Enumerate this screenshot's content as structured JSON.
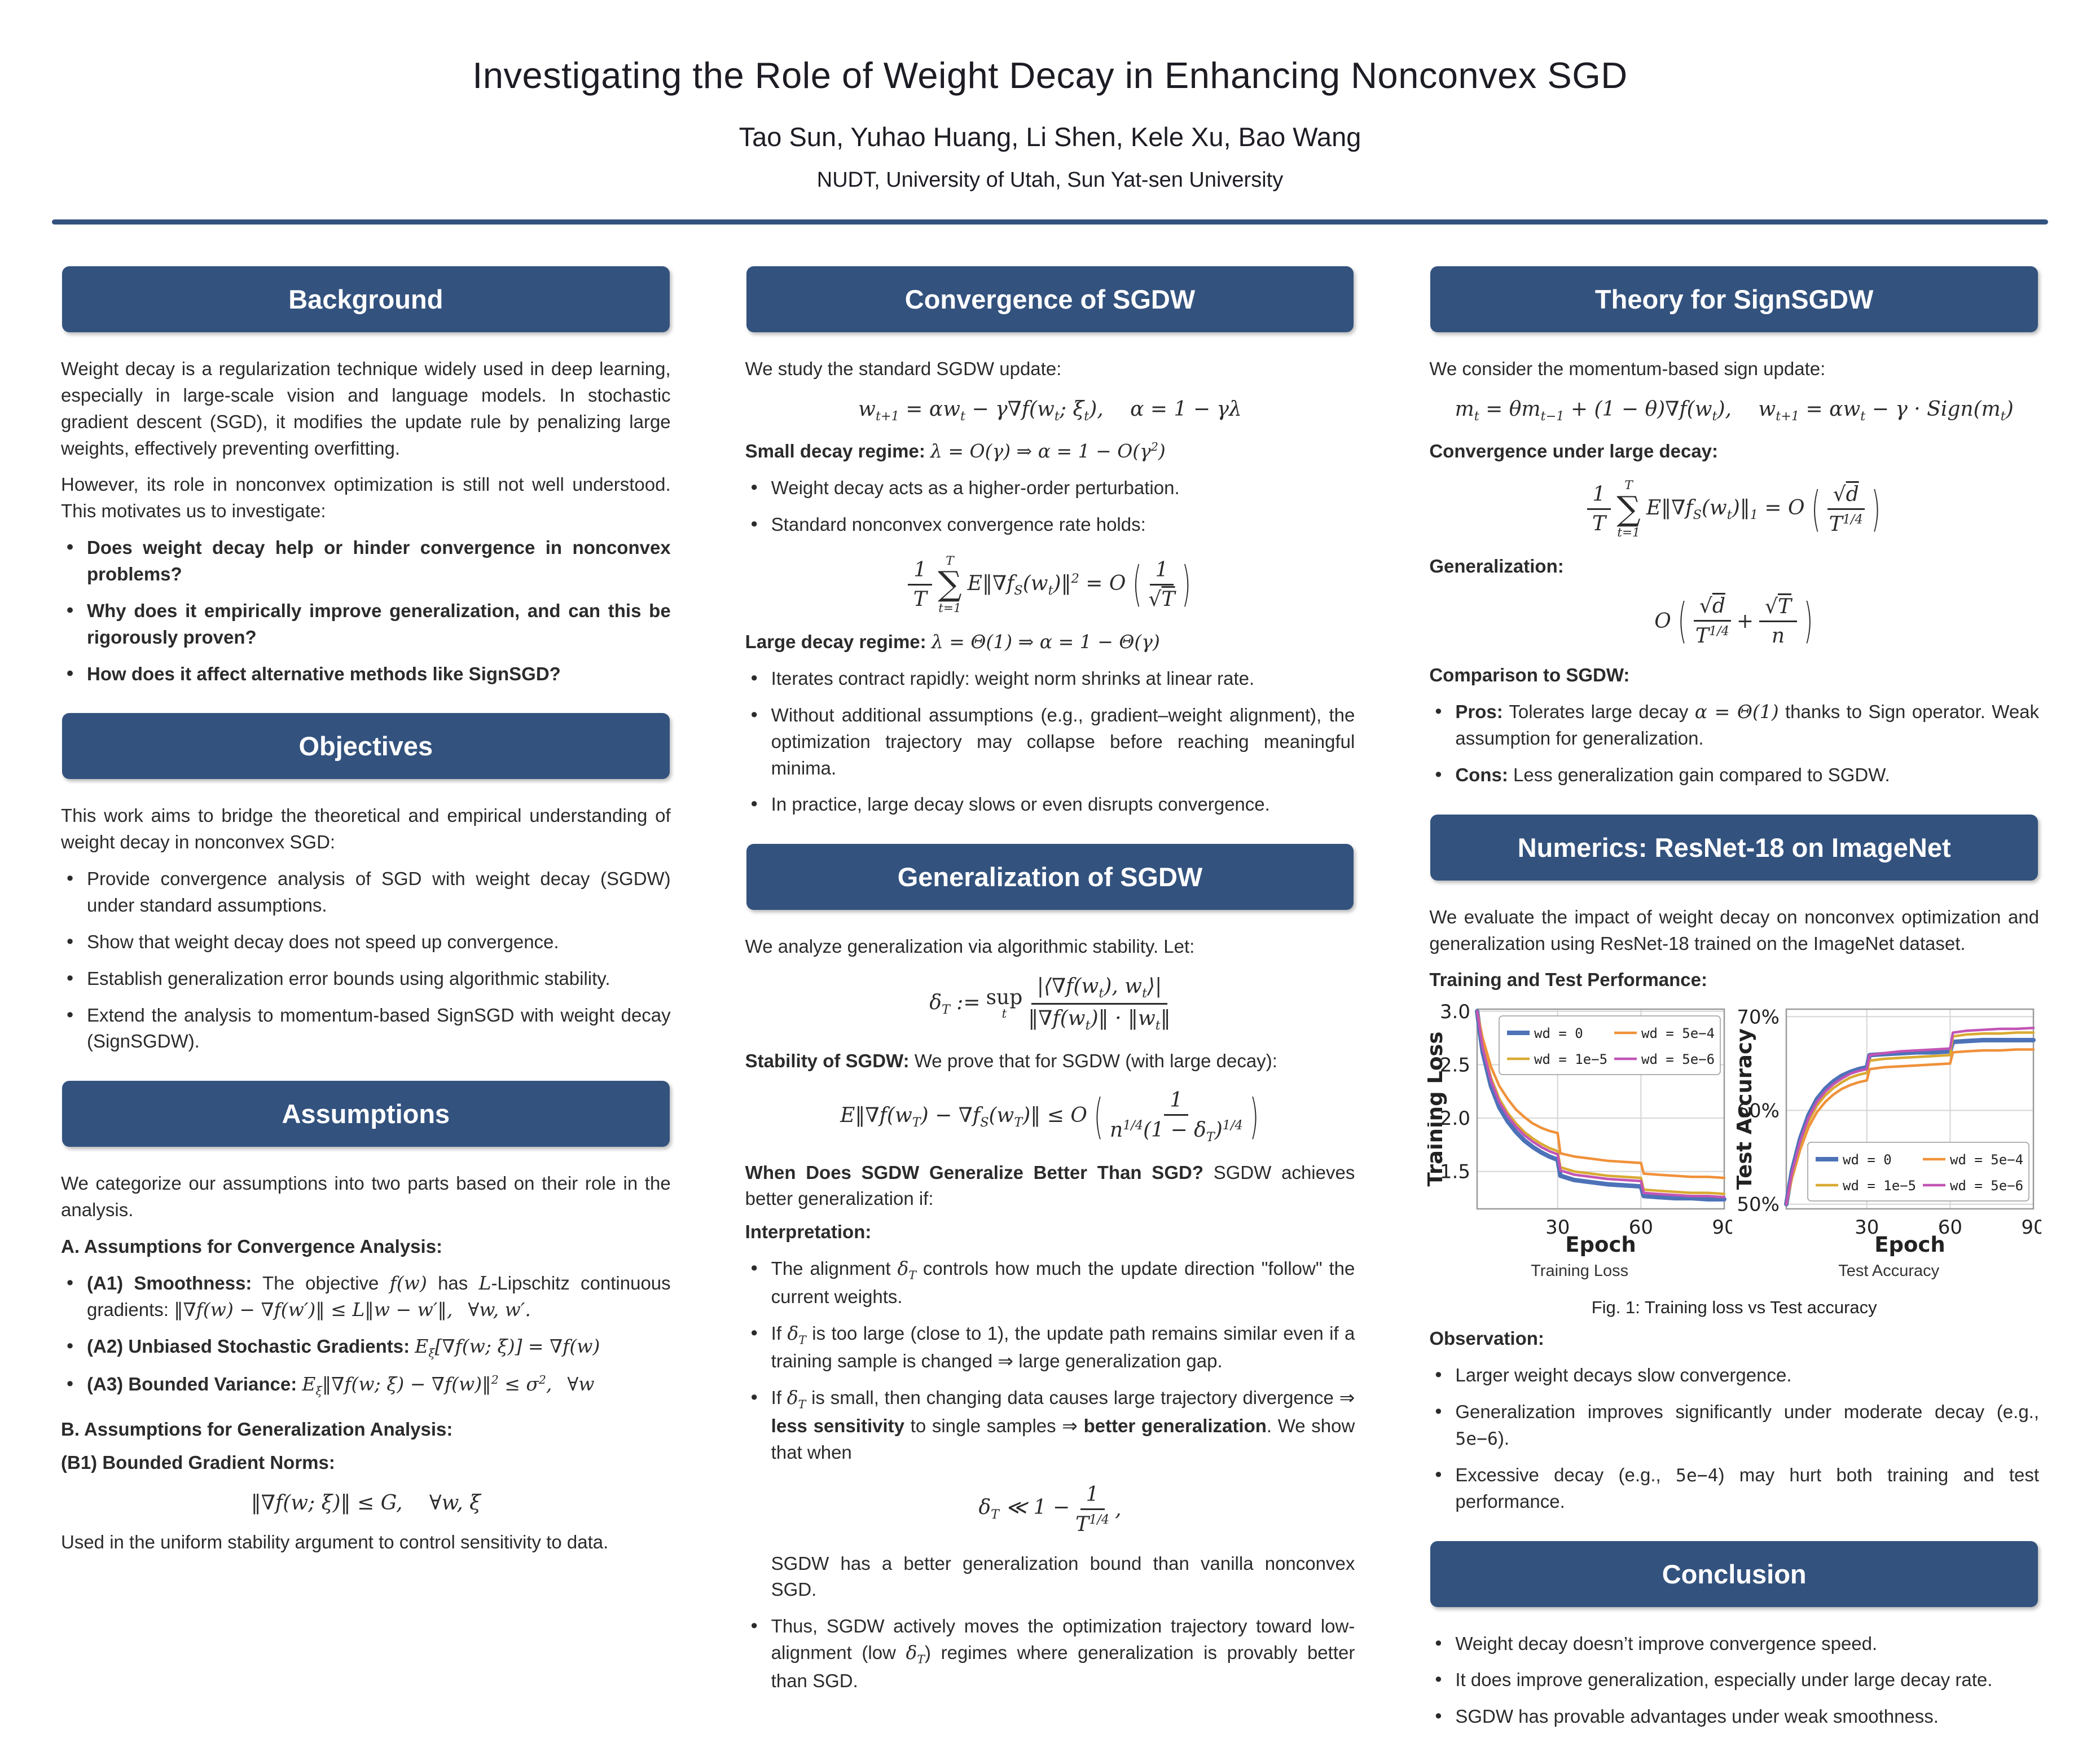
{
  "colors": {
    "header_bg": "#33527e",
    "rule": "#33527e",
    "text": "#2b2b2b"
  },
  "header": {
    "title": "Investigating the Role of Weight Decay in Enhancing Nonconvex SGD",
    "authors": "Tao Sun, Yuhao Huang, Li Shen, Kele Xu, Bao Wang",
    "affiliation": "NUDT, University of Utah, Sun Yat-sen University"
  },
  "background": {
    "header": "Background",
    "para1": "Weight decay is a regularization technique widely used in deep learning, especially in large-scale vision and language models. In stochastic gradient descent (SGD), it modifies the update rule by penalizing large weights, effectively preventing overfitting.",
    "para2": "However, its role in nonconvex optimization is still not well understood. This motivates us to investigate:",
    "bullets": [
      "Does weight decay help or hinder convergence in nonconvex problems?",
      "Why does it empirically improve generalization, and can this be rigorously proven?",
      "How does it affect alternative methods like SignSGD?"
    ]
  },
  "objectives": {
    "header": "Objectives",
    "intro": "This work aims to bridge the theoretical and empirical understanding of weight decay in nonconvex SGD:",
    "bullets": [
      "Provide convergence analysis of SGD with weight decay (SGDW) under standard assumptions.",
      "Show that weight decay does not speed up convergence.",
      "Establish generalization error bounds using algorithmic stability.",
      "Extend the analysis to momentum-based SignSGD with weight decay (SignSGDW)."
    ]
  },
  "assumptions": {
    "header": "Assumptions",
    "intro": "We categorize our assumptions into two parts based on their role in the analysis.",
    "part_a": "**A. Assumptions for Convergence Analysis:**",
    "bullets": [
      "**(A1) Smoothness:** The objective $f(w)$ has $L$-Lipschitz continuous gradients: $‖∇f(w) − ∇f(w′)‖ ≤ L‖w − w′‖,  ∀w, w′.$",
      "**(A2) Unbiased Stochastic Gradients:** $E_{ξ}[∇f(w; ξ)] = ∇f(w)$",
      "**(A3) Bounded Variance:** $E_{ξ}‖∇f(w; ξ) − ∇f(w)‖^{2} ≤ σ^{2},  ∀w$"
    ],
    "part_b": "**B. Assumptions for Generalization Analysis:**",
    "b1_title": "**(B1) Bounded Gradient Norms:**",
    "b1_eq": "$‖∇f(w; ξ)‖ ≤ G,  ∀w, ξ$",
    "footer": "Used in the uniform stability argument to control sensitivity to data."
  },
  "convergence": {
    "header": "Convergence of SGDW",
    "intro": "We study the standard SGDW update:",
    "update_eq": "$w_{t+1} = αw_{t} − γ∇f(w_{t}; ξ_{t}),  α = 1 − γλ$",
    "small_line": "**Small decay regime:** $λ = O(γ) ⇒ α = 1 − O(γ^{2})$",
    "small_bullets": [
      "Weight decay acts as a higher-order perturbation.",
      "Standard nonconvex convergence rate holds:"
    ],
    "rate_eq": {
      "frac1_num": "1",
      "frac1_den": "T",
      "sum_top": "T",
      "sum_bot": "t=1",
      "mid": "E‖∇f_{S}(w_{t})‖^{2} = O",
      "frac2_num": "1",
      "frac2_den": "√{T}"
    },
    "large_line": "**Large decay regime:** $λ = Θ(1) ⇒ α = 1 − Θ(γ)$",
    "large_bullets": [
      "Iterates contract rapidly: weight norm shrinks at linear rate.",
      "Without additional assumptions (e.g., gradient–weight alignment), the optimization trajectory may collapse before reaching meaningful minima.",
      "In practice, large decay slows or even disrupts convergence."
    ]
  },
  "generalization": {
    "header": "Generalization of SGDW",
    "intro": "We analyze generalization via algorithmic stability. Let:",
    "delta_eq": {
      "lhs": "δ_{T} :=",
      "sup": "sup",
      "sup_sub": "t",
      "num": "|⟨∇f(w_{t}), w_{t}⟩|",
      "den": "‖∇f(w_{t})‖ · ‖w_{t}‖"
    },
    "stability_line": "**Stability of SGDW:** We prove that for SGDW (with large decay):",
    "stab_eq": {
      "lhs": "E‖∇f(w_{T}) − ∇f_{S}(w_{T})‖ ≤ O",
      "num": "1",
      "den": "n^{1/4}(1 − δ_{T})^{1/4}"
    },
    "when_line": "**When Does SGDW Generalize Better Than SGD?** SGDW achieves better generalization if:",
    "interp_label": "**Interpretation:**",
    "bullets": [
      "The alignment $δ_{T}$ controls how much the update direction \"follow\" the current weights.",
      "If $δ_{T}$ is too large (close to 1), the update path remains similar even if a training sample is changed ⇒ large generalization gap.",
      "If $δ_{T}$ is small, then changing data causes large trajectory divergence ⇒ **less sensitivity** to single samples ⇒ **better generalization**. We show that when"
    ],
    "cond_eq": {
      "lhs": "δ_{T} ≪ 1 −",
      "num": "1",
      "den": "T^{1/4}",
      "tail": ","
    },
    "cond_after": "SGDW has a better generalization bound than vanilla nonconvex SGD.",
    "final_bullet": "Thus, SGDW actively moves the optimization trajectory toward low-alignment (low $δ_{T}$) regimes where generalization is provably better than SGD."
  },
  "signsgdw": {
    "header": "Theory for SignSGDW",
    "intro": "We consider the momentum-based sign update:",
    "update_eq": "$m_{t} = θm_{t−1} + (1 − θ)∇f(w_{t}),  w_{t+1} = αw_{t} − γ · Sign(m_{t})$",
    "conv_label": "**Convergence under large decay:**",
    "conv_eq": {
      "frac1_num": "1",
      "frac1_den": "T",
      "sum_top": "T",
      "sum_bot": "t=1",
      "mid": "E‖∇f_{S}(w_{t})‖_{1} = O",
      "frac2_num": "√{d}",
      "frac2_den": "T^{1/4}"
    },
    "gen_label": "**Generalization:**",
    "gen_eq": {
      "lhs": "O",
      "num1": "√{d}",
      "den1": "T^{1/4}",
      "plus": "+",
      "num2": "√{T}",
      "den2": "n"
    },
    "comp_label": "**Comparison to SGDW:**",
    "bullets": [
      "**Pros:** Tolerates large decay $α = Θ(1)$ thanks to Sign operator. Weak assumption for generalization.",
      "**Cons:** Less generalization gain compared to SGDW."
    ]
  },
  "numerics": {
    "header": "Numerics: ResNet-18 on ImageNet",
    "intro": "We evaluate the impact of weight decay on nonconvex optimization and generalization using ResNet-18 trained on the ImageNet dataset.",
    "perf_label": "**Training and Test Performance:**",
    "fig_caption": "Fig. 1: Training loss vs Test accuracy",
    "obs_label": "**Observation:**",
    "obs_bullets": [
      "Larger weight decays slow convergence.",
      "Generalization improves significantly under moderate decay (e.g., `5e−6`).",
      "Excessive decay (e.g., `5e−4`) may hurt both training and test performance."
    ]
  },
  "conclusion": {
    "header": "Conclusion",
    "bullets": [
      "Weight decay doesn’t improve convergence speed.",
      "It does improve generalization, especially under large decay rate.",
      "SGDW has provable advantages under weak smoothness."
    ]
  },
  "chart_data": [
    {
      "type": "line",
      "caption": "Training Loss",
      "xlabel": "Epoch",
      "ylabel": "Training Loss",
      "xlim": [
        1,
        90
      ],
      "ylim": [
        1.15,
        3.02
      ],
      "xticks": [
        30,
        60,
        90
      ],
      "yticks": [
        1.5,
        2.0,
        2.5,
        3.0
      ],
      "ytick_labels": [
        "1.5",
        "2.0",
        "2.5",
        "3.0"
      ],
      "legend_pos": "top",
      "grid": true,
      "x": [
        1,
        3,
        6,
        9,
        12,
        15,
        18,
        21,
        24,
        27,
        30,
        31,
        36,
        42,
        48,
        54,
        60,
        61,
        66,
        72,
        78,
        84,
        90
      ],
      "series": [
        {
          "name": "wd = 0",
          "color": "#4d72b8",
          "width": 8,
          "values": [
            3.0,
            2.62,
            2.3,
            2.1,
            1.97,
            1.87,
            1.79,
            1.73,
            1.68,
            1.64,
            1.61,
            1.46,
            1.42,
            1.4,
            1.38,
            1.37,
            1.36,
            1.27,
            1.26,
            1.25,
            1.25,
            1.24,
            1.24
          ]
        },
        {
          "name": "wd = 5e−4",
          "color": "#f0913a",
          "width": 4.5,
          "values": [
            3.0,
            2.75,
            2.48,
            2.3,
            2.18,
            2.08,
            2.01,
            1.95,
            1.91,
            1.88,
            1.86,
            1.67,
            1.64,
            1.62,
            1.6,
            1.59,
            1.58,
            1.48,
            1.47,
            1.46,
            1.45,
            1.45,
            1.44
          ]
        },
        {
          "name": "wd = 1e−5",
          "color": "#d9a932",
          "width": 4.5,
          "values": [
            3.0,
            2.68,
            2.38,
            2.18,
            2.05,
            1.95,
            1.87,
            1.81,
            1.76,
            1.72,
            1.69,
            1.54,
            1.5,
            1.48,
            1.46,
            1.45,
            1.44,
            1.33,
            1.32,
            1.31,
            1.3,
            1.3,
            1.29
          ]
        },
        {
          "name": "wd = 5e−6",
          "color": "#c255b5",
          "width": 4.5,
          "values": [
            3.0,
            2.66,
            2.35,
            2.15,
            2.02,
            1.92,
            1.84,
            1.78,
            1.73,
            1.69,
            1.66,
            1.51,
            1.47,
            1.45,
            1.43,
            1.42,
            1.41,
            1.3,
            1.29,
            1.28,
            1.27,
            1.27,
            1.26
          ]
        }
      ]
    },
    {
      "type": "line",
      "caption": "Test Accuracy",
      "xlabel": "Epoch",
      "ylabel": "Test Accuracy",
      "xlim": [
        1,
        90
      ],
      "ylim": [
        49.5,
        70.8
      ],
      "xticks": [
        30,
        60,
        90
      ],
      "yticks": [
        50,
        60,
        70
      ],
      "ytick_labels": [
        "50%",
        "60%",
        "70%"
      ],
      "legend_pos": "bottom",
      "grid": true,
      "x": [
        1,
        3,
        6,
        9,
        12,
        15,
        18,
        21,
        24,
        27,
        30,
        31,
        36,
        42,
        48,
        54,
        60,
        61,
        66,
        72,
        78,
        84,
        90
      ],
      "series": [
        {
          "name": "wd = 0",
          "color": "#4d72b8",
          "width": 8,
          "values": [
            50.0,
            53.5,
            57.0,
            59.5,
            61.2,
            62.3,
            63.1,
            63.7,
            64.1,
            64.4,
            64.6,
            65.9,
            66.0,
            66.1,
            66.2,
            66.2,
            66.3,
            67.3,
            67.4,
            67.5,
            67.5,
            67.5,
            67.5
          ]
        },
        {
          "name": "wd = 5e−4",
          "color": "#f0913a",
          "width": 4.5,
          "values": [
            50.0,
            52.7,
            55.8,
            58.2,
            59.8,
            60.9,
            61.7,
            62.3,
            62.7,
            63.0,
            63.2,
            64.4,
            64.6,
            64.7,
            64.8,
            64.9,
            65.0,
            66.2,
            66.3,
            66.4,
            66.4,
            66.5,
            66.5
          ]
        },
        {
          "name": "wd = 1e−5",
          "color": "#d9a932",
          "width": 4.5,
          "values": [
            50.0,
            53.0,
            56.3,
            58.8,
            60.5,
            61.6,
            62.4,
            63.0,
            63.5,
            63.8,
            64.0,
            65.3,
            65.5,
            65.6,
            65.7,
            65.8,
            65.9,
            67.9,
            68.1,
            68.2,
            68.2,
            68.3,
            68.3
          ]
        },
        {
          "name": "wd = 5e−6",
          "color": "#c255b5",
          "width": 4.5,
          "values": [
            50.0,
            53.3,
            56.7,
            59.2,
            60.9,
            62.0,
            62.8,
            63.4,
            63.9,
            64.2,
            64.4,
            65.9,
            66.1,
            66.3,
            66.4,
            66.5,
            66.6,
            68.3,
            68.5,
            68.6,
            68.7,
            68.7,
            68.8
          ]
        }
      ]
    }
  ]
}
